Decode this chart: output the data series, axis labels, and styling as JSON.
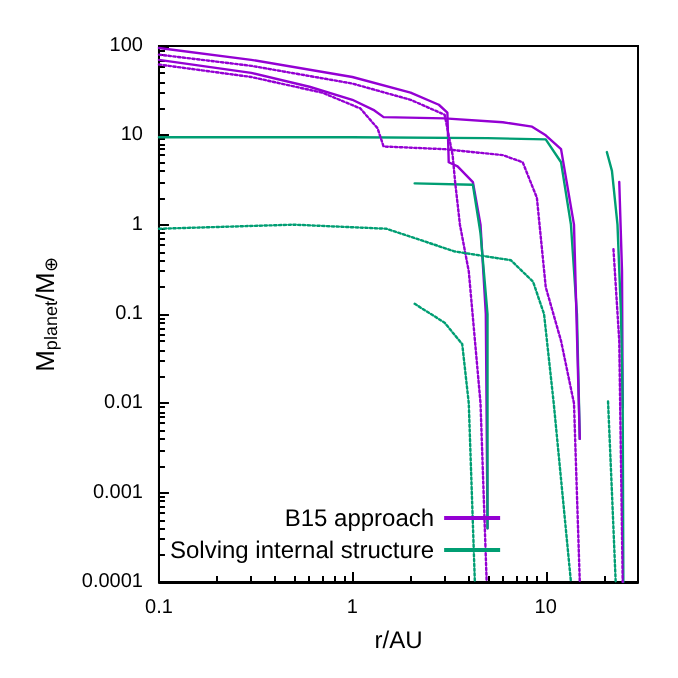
{
  "chart_data": {
    "type": "line",
    "xlabel": "r/AU",
    "ylabel": "M$_{planet}$/M$_{⊕}$",
    "log": "xy",
    "xlim": [
      0.1,
      30
    ],
    "ylim": [
      0.0001,
      100
    ],
    "xticks": [
      0.1,
      1,
      10
    ],
    "yticks": [
      0.0001,
      0.001,
      0.01,
      0.1,
      1,
      10,
      100
    ],
    "grid": false,
    "legend": "bottom",
    "marker": "none",
    "series": [
      {
        "name": "B15 approach",
        "color": "#9400d3",
        "line_style": "solid",
        "x": [
          0.1,
          0.3,
          1,
          2,
          2.8,
          3.1,
          3.15,
          3.5,
          4.2,
          4.6,
          4.9,
          5
        ],
        "values": [
          95,
          70,
          45,
          30,
          22,
          18,
          5,
          4.5,
          3,
          1,
          0.1,
          0.0004
        ]
      },
      {
        "name": "Solving internal structure",
        "color": "#009e73",
        "line_style": "solid",
        "x": [
          0.1,
          1,
          5,
          10,
          12,
          13.5,
          14.5,
          15
        ],
        "values": [
          9.5,
          9.5,
          9.3,
          9,
          5,
          1,
          0.1,
          0.004
        ]
      },
      {
        "color": "#9400d3",
        "line_style": "solid",
        "x": [
          0.1,
          0.3,
          0.6,
          1,
          1.3,
          1.45,
          3,
          6,
          8.5,
          10,
          12,
          14,
          15
        ],
        "values": [
          70,
          50,
          35,
          25,
          19,
          16,
          15.5,
          14,
          12.5,
          10,
          7,
          1,
          0.004
        ]
      },
      {
        "color": "#9400d3",
        "line_style": "solid",
        "x": [
          24,
          24.8,
          25
        ],
        "values": [
          3,
          0.3,
          0.009
        ]
      },
      {
        "color": "#009e73",
        "line_style": "solid",
        "x": [
          2.1,
          4.2,
          4.6,
          5,
          5
        ],
        "values": [
          2.9,
          2.8,
          0.8,
          0.1,
          0.0004
        ]
      },
      {
        "color": "#009e73",
        "line_style": "solid",
        "x": [
          20.7,
          22,
          23.5,
          24.5,
          25,
          25.2
        ],
        "values": [
          6.5,
          4,
          1,
          0.1,
          0.01,
          0.0001
        ]
      },
      {
        "color": "#9400d3",
        "line_style": "dotted",
        "x": [
          0.1,
          0.3,
          1,
          2,
          3,
          3.3,
          3.4,
          3.6,
          4,
          4.6,
          4.95
        ],
        "values": [
          80,
          60,
          38,
          25,
          17,
          6,
          3,
          1,
          0.3,
          0.01,
          0.0001
        ]
      },
      {
        "color": "#9400d3",
        "line_style": "dotted",
        "x": [
          0.1,
          0.3,
          0.7,
          1.1,
          1.35,
          1.45,
          3,
          6,
          7.6,
          9,
          10,
          12,
          14,
          15
        ],
        "values": [
          62,
          45,
          30,
          20,
          12,
          7.5,
          7,
          6,
          5,
          2,
          0.2,
          0.05,
          0.01,
          0.0001
        ]
      },
      {
        "color": "#9400d3",
        "line_style": "dotted",
        "x": [
          22.4,
          24,
          25
        ],
        "values": [
          0.53,
          0.05,
          0.0001
        ]
      },
      {
        "color": "#009e73",
        "line_style": "dotted",
        "x": [
          0.1,
          0.5,
          1.5,
          3.4,
          6.6,
          8.6,
          9.8,
          11,
          13.5
        ],
        "values": [
          0.9,
          1,
          0.9,
          0.5,
          0.4,
          0.23,
          0.1,
          0.01,
          0.0001
        ]
      },
      {
        "color": "#009e73",
        "line_style": "dotted",
        "x": [
          2.1,
          3,
          3.7,
          4,
          4.3
        ],
        "values": [
          0.13,
          0.08,
          0.046,
          0.01,
          0.0001
        ]
      },
      {
        "color": "#009e73",
        "line_style": "dotted",
        "x": [
          21,
          22,
          23
        ],
        "values": [
          0.0105,
          0.001,
          0.0001
        ]
      }
    ]
  }
}
